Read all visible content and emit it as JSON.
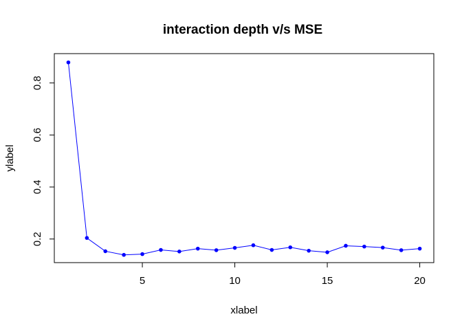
{
  "chart_data": {
    "type": "line",
    "title": "interaction depth v/s MSE",
    "xlabel": "xlabel",
    "ylabel": "ylabel",
    "xlim": [
      0.24,
      20.76
    ],
    "ylim": [
      0.1092,
      0.9128
    ],
    "x_ticks": [
      5,
      10,
      15,
      20
    ],
    "y_ticks": [
      0.2,
      0.4,
      0.6,
      0.8
    ],
    "x_tick_labels": [
      "5",
      "10",
      "15",
      "20"
    ],
    "y_tick_labels": [
      "0.2",
      "0.4",
      "0.6",
      "0.8"
    ],
    "grid": false,
    "series": [
      {
        "color": "#0000ff",
        "markers": true,
        "x": [
          1,
          2,
          3,
          4,
          5,
          6,
          7,
          8,
          9,
          10,
          11,
          12,
          13,
          14,
          15,
          16,
          17,
          18,
          19,
          20
        ],
        "y": [
          0.879,
          0.204,
          0.153,
          0.139,
          0.142,
          0.158,
          0.152,
          0.163,
          0.157,
          0.166,
          0.176,
          0.158,
          0.168,
          0.155,
          0.149,
          0.174,
          0.171,
          0.167,
          0.157,
          0.163
        ]
      }
    ]
  }
}
